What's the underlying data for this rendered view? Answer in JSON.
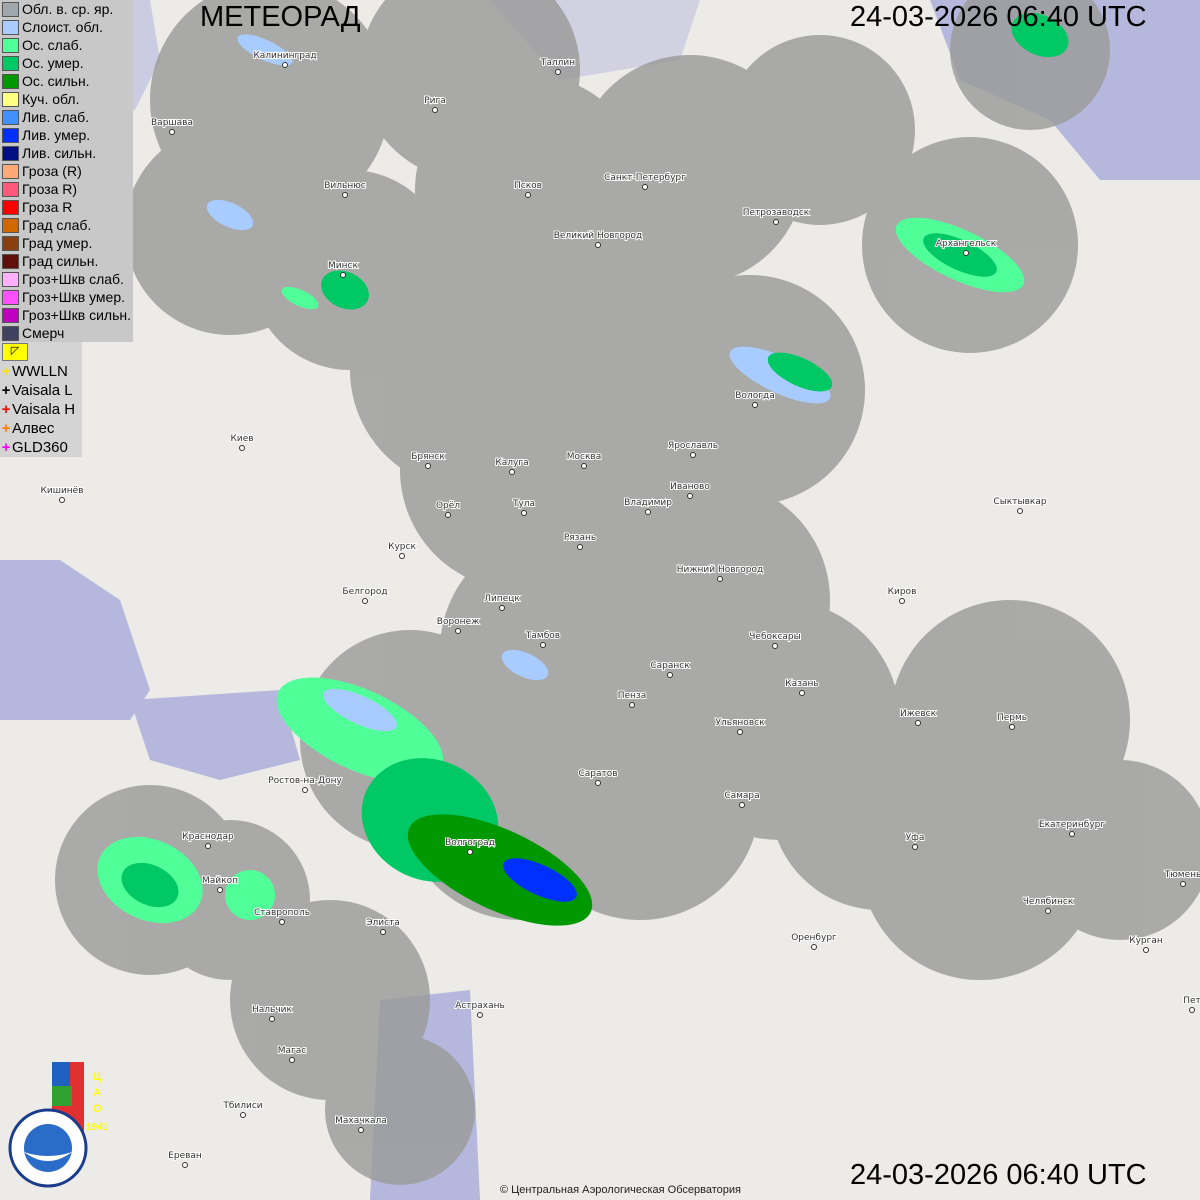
{
  "header": {
    "title": "МЕТЕОРАД",
    "timestamp_top": "24-03-2026  06:40 UTC",
    "timestamp_bottom": "24-03-2026  06:40 UTC"
  },
  "legend": [
    {
      "label": "Обл. в. ср. яр.",
      "color": "#a0a8ae"
    },
    {
      "label": "Слоист. обл.",
      "color": "#a8ccff"
    },
    {
      "label": "Ос. слаб.",
      "color": "#50ff98"
    },
    {
      "label": "Ос. умер.",
      "color": "#00c864"
    },
    {
      "label": "Ос. сильн.",
      "color": "#009800"
    },
    {
      "label": "Куч. обл.",
      "color": "#ffff80"
    },
    {
      "label": "Лив. слаб.",
      "color": "#4090ff"
    },
    {
      "label": "Лив. умер.",
      "color": "#0030ff"
    },
    {
      "label": "Лив. сильн.",
      "color": "#001080"
    },
    {
      "label": "Гроза (R)",
      "color": "#ffa878"
    },
    {
      "label": "Гроза R)",
      "color": "#ff5878"
    },
    {
      "label": "Гроза R",
      "color": "#ff0000"
    },
    {
      "label": "Град слаб.",
      "color": "#d06800"
    },
    {
      "label": "Град умер.",
      "color": "#884010"
    },
    {
      "label": "Град сильн.",
      "color": "#601008"
    },
    {
      "label": "Гроз+Шкв слаб.",
      "color": "#ffb0ff"
    },
    {
      "label": "Гроз+Шкв умер.",
      "color": "#ff50ff"
    },
    {
      "label": "Гроз+Шкв сильн.",
      "color": "#c000c0"
    },
    {
      "label": "Смерч",
      "color": "#404060"
    }
  ],
  "lightning": [
    {
      "label": "WWLLN",
      "color": "#ffe000"
    },
    {
      "label": "Vaisala L",
      "color": "#000000"
    },
    {
      "label": "Vaisala H",
      "color": "#ff0000"
    },
    {
      "label": "Алвес",
      "color": "#ff8000"
    },
    {
      "label": "GLD360",
      "color": "#ff00ff"
    }
  ],
  "cities": [
    "Калининград",
    "Таллин",
    "Рига",
    "Варшава",
    "Вильнюс",
    "Псков",
    "Санкт-Петербург",
    "Петрозаводск",
    "Великий Новгород",
    "Архангельск",
    "Минск",
    "Вологда",
    "Киев",
    "Брянск",
    "Калуга",
    "Москва",
    "Ярославль",
    "Иваново",
    "Владимир",
    "Кишинёв",
    "Орёл",
    "Тула",
    "Сыктывкар",
    "Рязань",
    "Курск",
    "Нижний Новгород",
    "Белгород",
    "Киров",
    "Липецк",
    "Воронеж",
    "Тамбов",
    "Чебоксары",
    "Саранск",
    "Казань",
    "Пенза",
    "Ижевск",
    "Пермь",
    "Ульяновск",
    "Ростов-на-Дону",
    "Саратов",
    "Самара",
    "Екатеринбург",
    "Краснодар",
    "Волгоград",
    "Уфа",
    "Тюмень",
    "Майкоп",
    "Челябинск",
    "Ставрополь",
    "Элиста",
    "Оренбург",
    "Курган",
    "Астрахань",
    "Пет",
    "Нальчик",
    "Магас",
    "Тбилиси",
    "Махачкала",
    "Ереван"
  ],
  "logos": {
    "roshydromet": "РОСГИДРОМЕТ ROSHYDROMET",
    "cao": "ЦАО 1941"
  },
  "footer": {
    "copyright": "© Центральная Аэрологическая Обсерватория"
  }
}
